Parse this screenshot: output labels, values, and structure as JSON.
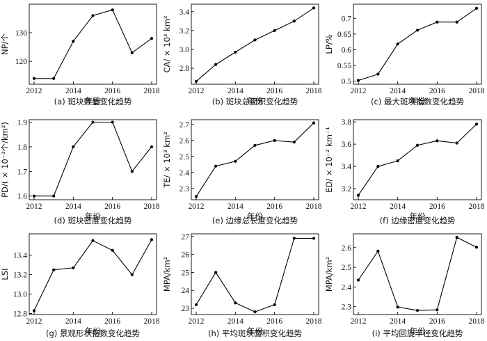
{
  "chart_data": [
    {
      "type": "line",
      "caption": "(a) 斑块数量变化趋势",
      "xlabel": "年份",
      "ylabel": "NP/个",
      "x": [
        2012,
        2013,
        2014,
        2015,
        2016,
        2017,
        2018
      ],
      "values": [
        114,
        114,
        127,
        136,
        138,
        123,
        128
      ],
      "xticks": [
        "2012",
        "2014",
        "2016",
        "2018"
      ],
      "yticks": [
        120,
        130
      ],
      "ytick_labels": [
        "120",
        "130"
      ],
      "ylim": [
        112,
        140
      ]
    },
    {
      "type": "line",
      "caption": "(b) 斑块总面积变化趋势",
      "xlabel": "年份",
      "ylabel": "CA/ × 10³ km²",
      "x": [
        2012,
        2013,
        2014,
        2015,
        2016,
        2017,
        2018
      ],
      "values": [
        2.66,
        2.84,
        2.97,
        3.1,
        3.2,
        3.3,
        3.44
      ],
      "xticks": [
        "2012",
        "2014",
        "2016",
        "2018"
      ],
      "yticks": [
        2.8,
        3.0,
        3.2,
        3.4
      ],
      "ytick_labels": [
        "2.8",
        "3.0",
        "3.2",
        "3.4"
      ],
      "ylim": [
        2.63,
        3.48
      ]
    },
    {
      "type": "line",
      "caption": "(c) 最大斑块指数变化趋势",
      "xlabel": "年份",
      "ylabel": "LP/%",
      "x": [
        2012,
        2013,
        2014,
        2015,
        2016,
        2017,
        2018
      ],
      "values": [
        0.502,
        0.522,
        0.618,
        0.662,
        0.688,
        0.688,
        0.732
      ],
      "xticks": [
        "2012",
        "2014",
        "2016",
        "2018"
      ],
      "yticks": [
        0.5,
        0.55,
        0.6,
        0.65,
        0.7
      ],
      "ytick_labels": [
        "0.5",
        "0.55",
        "0.6",
        "0.65",
        "0.7"
      ],
      "ylim": [
        0.49,
        0.745
      ]
    },
    {
      "type": "line",
      "caption": "(d) 斑块密度变化趋势",
      "xlabel": "年份",
      "ylabel": "PD/( × 10⁻³个/km²)",
      "x": [
        2012,
        2013,
        2014,
        2015,
        2016,
        2017,
        2018
      ],
      "values": [
        1.6,
        1.6,
        1.8,
        1.9,
        1.9,
        1.7,
        1.8
      ],
      "xticks": [
        "2012",
        "2014",
        "2016",
        "2018"
      ],
      "yticks": [
        1.6,
        1.7,
        1.8,
        1.9
      ],
      "ytick_labels": [
        "1.6",
        "1.7",
        "1.8",
        "1.9"
      ],
      "ylim": [
        1.585,
        1.91
      ]
    },
    {
      "type": "line",
      "caption": "(e) 边缘总长度变化趋势",
      "xlabel": "年份",
      "ylabel": "TE/ × 10³ km²",
      "x": [
        2012,
        2013,
        2014,
        2015,
        2016,
        2017,
        2018
      ],
      "values": [
        2.25,
        2.44,
        2.47,
        2.57,
        2.6,
        2.59,
        2.71
      ],
      "xticks": [
        "2012",
        "2014",
        "2016",
        "2018"
      ],
      "yticks": [
        2.3,
        2.4,
        2.5,
        2.6,
        2.7
      ],
      "ytick_labels": [
        "2.3",
        "2.4",
        "2.5",
        "2.6",
        "2.7"
      ],
      "ylim": [
        2.23,
        2.73
      ]
    },
    {
      "type": "line",
      "caption": "(f) 边缘密度变化趋势",
      "xlabel": "年份",
      "ylabel": "ED/ × 10⁻² km⁻¹",
      "x": [
        2012,
        2013,
        2014,
        2015,
        2016,
        2017,
        2018
      ],
      "values": [
        3.14,
        3.4,
        3.45,
        3.59,
        3.63,
        3.61,
        3.78
      ],
      "xticks": [
        "2012",
        "2014",
        "2016",
        "2018"
      ],
      "yticks": [
        3.2,
        3.4,
        3.6,
        3.8
      ],
      "ytick_labels": [
        "3.2",
        "3.4",
        "3.6",
        "3.8"
      ],
      "ylim": [
        3.1,
        3.82
      ]
    },
    {
      "type": "line",
      "caption": "(g) 景观形状指数变化趋势",
      "xlabel": "年份",
      "ylabel": "LSI",
      "x": [
        2012,
        2013,
        2014,
        2015,
        2016,
        2017,
        2018
      ],
      "values": [
        12.83,
        13.25,
        13.27,
        13.55,
        13.45,
        13.2,
        13.56
      ],
      "xticks": [
        "2012",
        "2014",
        "2016",
        "2018"
      ],
      "yticks": [
        12.8,
        13.0,
        13.2,
        13.4
      ],
      "ytick_labels": [
        "12.8",
        "13.0",
        "13.2",
        "13.4"
      ],
      "ylim": [
        12.79,
        13.62
      ]
    },
    {
      "type": "line",
      "caption": "(h) 平均斑块面积变化趋势",
      "xlabel": "年份",
      "ylabel": "MPA/km²",
      "x": [
        2012,
        2013,
        2014,
        2015,
        2016,
        2017,
        2018
      ],
      "values": [
        23.2,
        25.0,
        23.3,
        22.8,
        23.2,
        26.9,
        26.9
      ],
      "xticks": [
        "2012",
        "2014",
        "2016",
        "2018"
      ],
      "yticks": [
        23,
        24,
        25,
        26,
        27
      ],
      "ytick_labels": [
        "23",
        "24",
        "25",
        "26",
        "27"
      ],
      "ylim": [
        22.65,
        27.15
      ]
    },
    {
      "type": "line",
      "caption": "(i) 平均回旋半径变化趋势",
      "xlabel": "年份",
      "ylabel": "MPA/km²",
      "x": [
        2012,
        2013,
        2014,
        2015,
        2016,
        2017,
        2018
      ],
      "values": [
        2.435,
        2.582,
        2.298,
        2.281,
        2.284,
        2.652,
        2.602
      ],
      "xticks": [
        "2012",
        "2014",
        "2016",
        "2018"
      ],
      "yticks": [
        2.3,
        2.4,
        2.5,
        2.6
      ],
      "ytick_labels": [
        "2.3",
        "2.4",
        "2.5",
        "2.6"
      ],
      "ylim": [
        2.26,
        2.67
      ]
    }
  ]
}
